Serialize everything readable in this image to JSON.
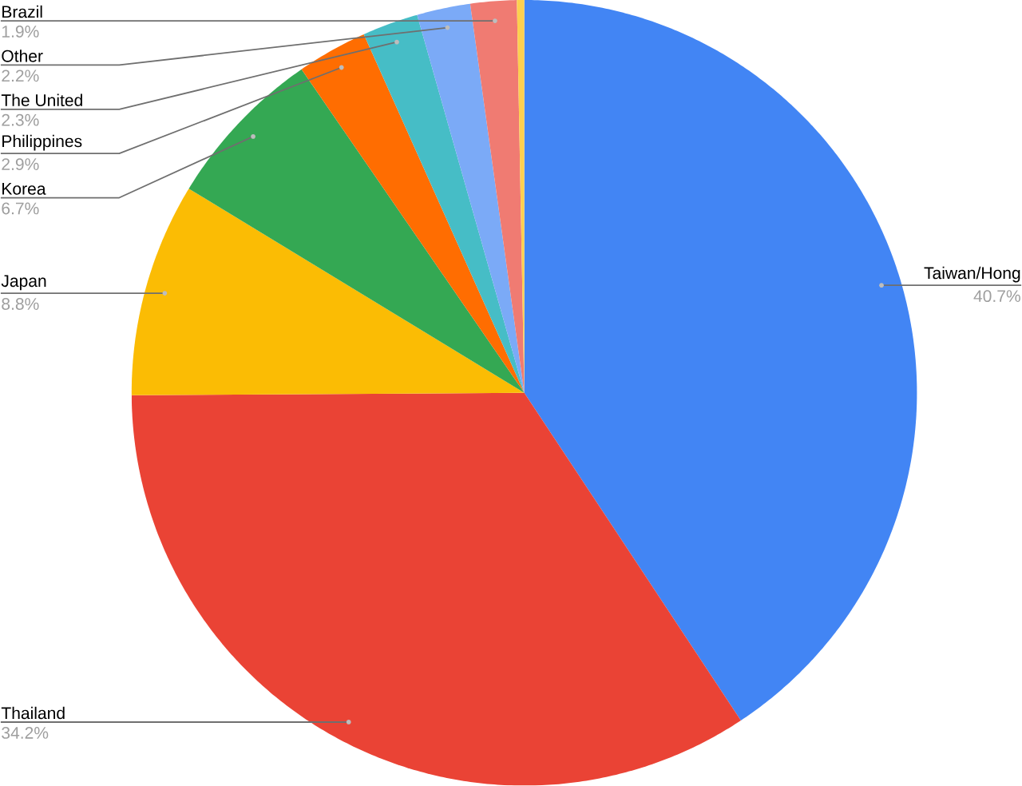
{
  "chart_data": {
    "type": "pie",
    "categories": [
      "Taiwan/Hong",
      "Thailand",
      "Japan",
      "Korea",
      "Philippines",
      "The United",
      "Other",
      "Brazil",
      null
    ],
    "values": [
      40.7,
      34.2,
      8.8,
      6.7,
      2.9,
      2.3,
      2.2,
      1.9,
      0.3
    ],
    "colors": [
      "#4285f4",
      "#ea4335",
      "#fbbc04",
      "#34a853",
      "#ff6d01",
      "#46bdc6",
      "#7baaf7",
      "#f07b72",
      "#fcd04f"
    ],
    "value_labels": [
      "40.7%",
      "34.2%",
      "8.8%",
      "6.7%",
      "2.9%",
      "2.3%",
      "2.2%",
      "1.9%",
      null
    ]
  }
}
